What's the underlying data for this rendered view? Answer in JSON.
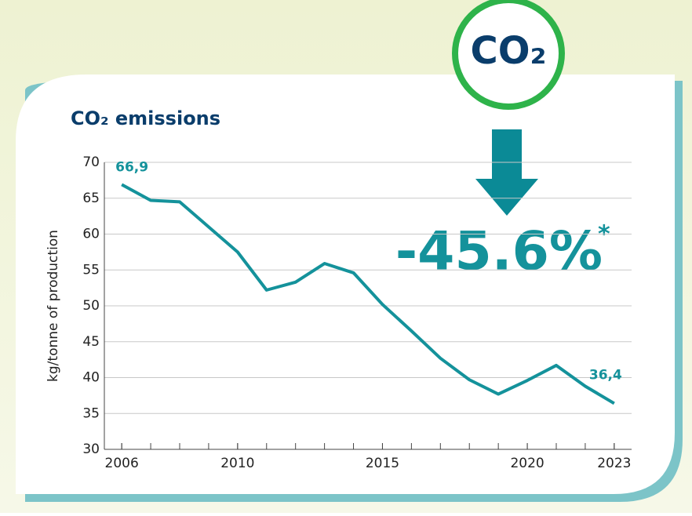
{
  "chart_data": {
    "type": "line",
    "title": "CO₂ emissions",
    "badge": "CO₂",
    "annotation": "-45.6%",
    "annotation_mark": "*",
    "y_label": "kg/tonne of production",
    "x": [
      2006,
      2007,
      2008,
      2009,
      2010,
      2011,
      2012,
      2013,
      2014,
      2015,
      2016,
      2017,
      2018,
      2019,
      2020,
      2021,
      2022,
      2023
    ],
    "values": [
      66.9,
      64.7,
      64.5,
      61.0,
      57.5,
      52.2,
      53.3,
      55.9,
      54.6,
      50.2,
      46.5,
      42.7,
      39.7,
      37.7,
      39.6,
      41.7,
      38.8,
      36.4
    ],
    "value_labels": [
      "66,9",
      null,
      null,
      null,
      null,
      null,
      null,
      null,
      null,
      null,
      null,
      null,
      null,
      null,
      null,
      null,
      null,
      "36,4"
    ],
    "color": "#14929b",
    "xlim": [
      2005.4,
      2023.6
    ],
    "xticks": [
      2006,
      2010,
      2015,
      2020,
      2023
    ],
    "ylim": [
      30,
      70
    ],
    "yticks": [
      30,
      35,
      40,
      45,
      50,
      55,
      60,
      65,
      70
    ],
    "grid": true
  }
}
